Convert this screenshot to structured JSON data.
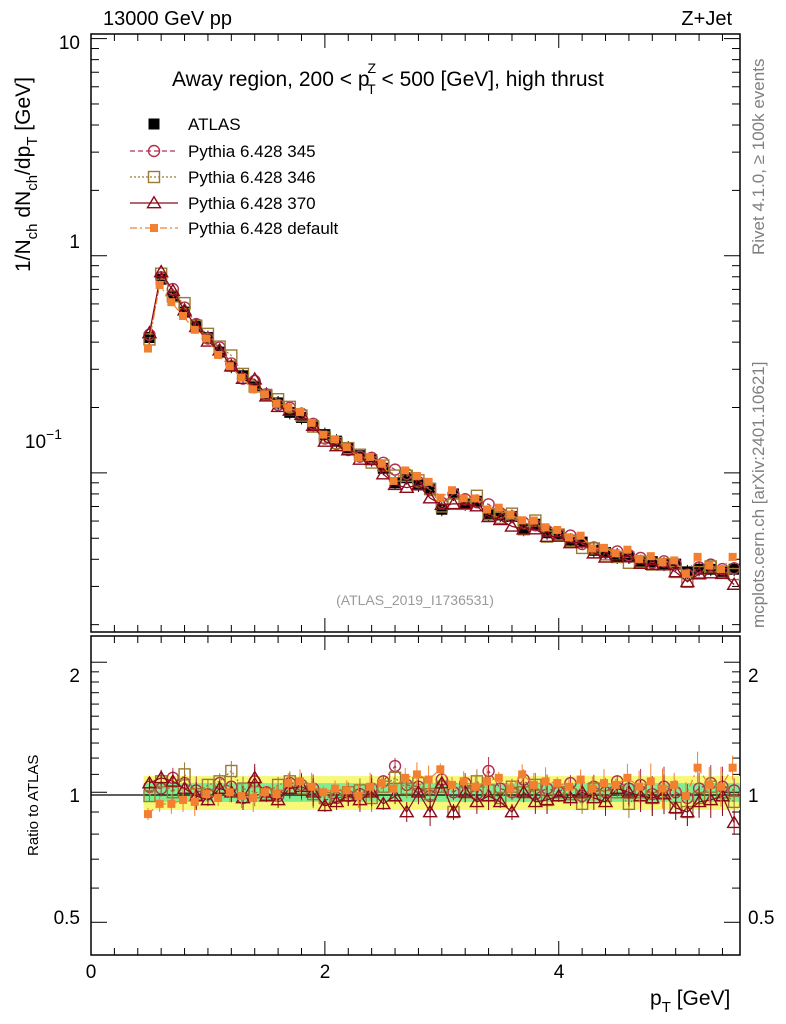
{
  "header": {
    "left": "13000 GeV pp",
    "right": "Z+Jet"
  },
  "side_labels": {
    "rivet": "Rivet 4.1.0, ≥ 100k events",
    "mcplots": "mcplots.cern.ch [arXiv:2401.10621]"
  },
  "watermark": "(ATLAS_2019_I1736531)",
  "chart_data": {
    "type": "scatter",
    "title": {
      "pre": "Away region, 200 < p",
      "sup": "Z",
      "sub": "T",
      "post": " < 500 [GeV], high thrust"
    },
    "ylabel": {
      "a": "1/N",
      "b": "ch",
      "c": " dN",
      "d": "ch",
      "e": "/dp",
      "f": "T",
      "g": " [GeV]"
    },
    "ratio_ylabel": "Ratio to ATLAS",
    "xlabel": {
      "a": "p",
      "b": "T",
      "c": " [GeV]"
    },
    "xlim": [
      0,
      5.55
    ],
    "ylim": [
      0.0185,
      10.5
    ],
    "ylim_ratio": [
      0.42,
      2.3
    ],
    "x_ticks": [
      "0",
      "2",
      "4"
    ],
    "y_ticks": {
      "ten": "10",
      "one": "1",
      "tenth_base": "10",
      "tenth_exp": "−1"
    },
    "ratio_ticks": [
      "2",
      "1",
      "0.5"
    ],
    "ratio_ticks_right": [
      "2",
      "1",
      "0.5"
    ],
    "x": [
      0.5,
      0.6,
      0.7,
      0.8,
      0.9,
      1.0,
      1.1,
      1.2,
      1.3,
      1.4,
      1.5,
      1.6,
      1.7,
      1.8,
      1.9,
      2.0,
      2.1,
      2.2,
      2.3,
      2.4,
      2.5,
      2.6,
      2.7,
      2.8,
      2.9,
      3.0,
      3.1,
      3.2,
      3.3,
      3.4,
      3.5,
      3.6,
      3.7,
      3.8,
      3.9,
      4.0,
      4.1,
      4.2,
      4.3,
      4.4,
      4.5,
      4.6,
      4.7,
      4.8,
      4.9,
      5.0,
      5.1,
      5.2,
      5.3,
      5.4,
      5.5
    ],
    "atlas": [
      0.42,
      0.78,
      0.65,
      0.55,
      0.48,
      0.42,
      0.36,
      0.31,
      0.28,
      0.25,
      0.23,
      0.21,
      0.19,
      0.18,
      0.165,
      0.15,
      0.14,
      0.13,
      0.12,
      0.115,
      0.105,
      0.09,
      0.095,
      0.088,
      0.085,
      0.068,
      0.08,
      0.072,
      0.074,
      0.064,
      0.064,
      0.063,
      0.055,
      0.058,
      0.053,
      0.052,
      0.049,
      0.048,
      0.044,
      0.043,
      0.041,
      0.041,
      0.039,
      0.039,
      0.038,
      0.038,
      0.035,
      0.036,
      0.036,
      0.035,
      0.036
    ],
    "series": [
      {
        "name": "ATLAS",
        "color": "#000000",
        "marker": "filled-square",
        "line": "none"
      },
      {
        "name": "Pythia 6.428 345",
        "color": "#b03050",
        "marker": "open-circle",
        "line": "dashed",
        "ratio": [
          1.03,
          1.02,
          1.08,
          1.05,
          1.01,
          0.99,
          1.05,
          1.03,
          0.97,
          1.06,
          1.0,
          0.98,
          1.05,
          1.04,
          1.02,
          0.96,
          0.97,
          0.98,
          0.99,
          1.02,
          1.06,
          1.15,
          1.04,
          1.03,
          0.98,
          1.07,
          1.0,
          1.05,
          0.99,
          1.12,
          1.02,
          1.0,
          1.07,
          0.99,
          1.02,
          1.0,
          1.05,
          0.98,
          1.03,
          1.0,
          1.06,
          1.02,
          1.04,
          0.99,
          1.03,
          1.0,
          0.97,
          1.02,
          1.05,
          1.03,
          1.01
        ]
      },
      {
        "name": "Pythia 6.428 346",
        "color": "#9a7a30",
        "marker": "open-square",
        "line": "dotted",
        "ratio": [
          0.98,
          1.06,
          1.0,
          1.1,
          0.99,
          1.04,
          1.06,
          1.12,
          1.02,
          1.0,
          0.99,
          1.04,
          1.06,
          1.02,
          0.99,
          0.97,
          0.98,
          1.0,
          1.01,
          0.97,
          1.03,
          1.08,
          1.02,
          1.05,
          0.99,
          1.03,
          0.9,
          1.0,
          1.06,
          1.01,
          0.97,
          1.03,
          1.0,
          1.04,
          0.96,
          1.0,
          0.99,
          0.94,
          1.02,
          0.98,
          1.0,
          0.94,
          1.0,
          0.97,
          1.0,
          0.92,
          0.9,
          0.97,
          1.03,
          1.0,
          0.95
        ]
      },
      {
        "name": "Pythia 6.428 370",
        "color": "#8b0a1a",
        "marker": "open-triangle",
        "line": "solid",
        "ratio": [
          1.05,
          1.08,
          1.06,
          1.02,
          0.98,
          0.96,
          1.02,
          1.0,
          0.97,
          1.08,
          0.98,
          0.96,
          1.02,
          1.03,
          1.0,
          0.93,
          0.95,
          0.98,
          0.96,
          1.0,
          0.94,
          0.98,
          0.9,
          1.0,
          0.9,
          1.05,
          0.9,
          1.0,
          0.95,
          0.98,
          0.95,
          0.9,
          1.0,
          0.95,
          0.96,
          0.98,
          0.97,
          1.0,
          0.97,
          0.95,
          1.02,
          1.0,
          0.98,
          0.97,
          0.99,
          0.92,
          0.9,
          0.95,
          0.96,
          0.98,
          0.85
        ]
      },
      {
        "name": "Pythia 6.428 default",
        "color": "#f28030",
        "marker": "filled-square",
        "line": "dashdot",
        "ratio": [
          0.89,
          0.94,
          0.94,
          0.96,
          0.95,
          0.99,
          0.97,
          1.0,
          0.98,
          0.97,
          1.0,
          0.99,
          1.05,
          1.06,
          1.03,
          1.0,
          1.02,
          1.01,
          0.98,
          1.03,
          1.05,
          1.02,
          1.08,
          1.1,
          1.07,
          1.13,
          1.04,
          1.06,
          1.03,
          1.06,
          1.08,
          1.02,
          1.1,
          1.04,
          1.06,
          1.05,
          1.03,
          1.07,
          1.02,
          1.05,
          1.04,
          1.08,
          1.03,
          1.06,
          1.02,
          1.04,
          0.98,
          1.14,
          1.04,
          1.03,
          1.14
        ]
      }
    ],
    "band": {
      "inner_halfwidth": 0.05,
      "outer_halfwidth": 0.09,
      "inner_color": "#80ee90",
      "outer_color": "#f8f878"
    }
  }
}
